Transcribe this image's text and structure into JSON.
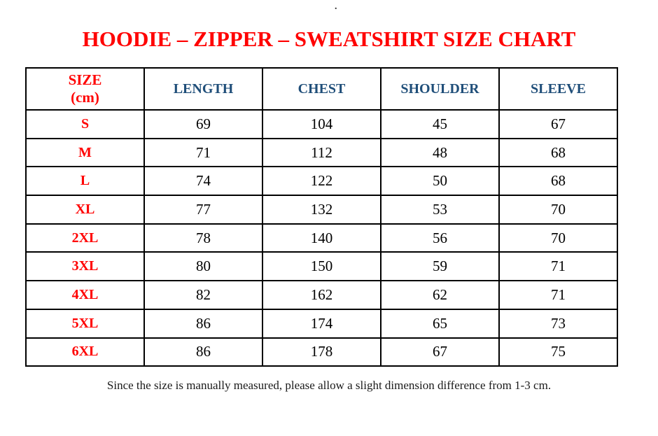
{
  "stray_mark": ".",
  "title": "HOODIE – ZIPPER – SWEATSHIRT SIZE CHART",
  "colors": {
    "title_red": "#ff0000",
    "header_blue": "#1f4e79",
    "value_black": "#000000",
    "border_black": "#000000"
  },
  "table": {
    "header": {
      "size_line1": "SIZE",
      "size_line2": "(cm)",
      "length": "LENGTH",
      "chest": "CHEST",
      "shoulder": "SHOULDER",
      "sleeve": "SLEEVE"
    },
    "rows": [
      {
        "size": "S",
        "length": "69",
        "chest": "104",
        "shoulder": "45",
        "sleeve": "67"
      },
      {
        "size": "M",
        "length": "71",
        "chest": "112",
        "shoulder": "48",
        "sleeve": "68"
      },
      {
        "size": "L",
        "length": "74",
        "chest": "122",
        "shoulder": "50",
        "sleeve": "68"
      },
      {
        "size": "XL",
        "length": "77",
        "chest": "132",
        "shoulder": "53",
        "sleeve": "70"
      },
      {
        "size": "2XL",
        "length": "78",
        "chest": "140",
        "shoulder": "56",
        "sleeve": "70"
      },
      {
        "size": "3XL",
        "length": "80",
        "chest": "150",
        "shoulder": "59",
        "sleeve": "71"
      },
      {
        "size": "4XL",
        "length": "82",
        "chest": "162",
        "shoulder": "62",
        "sleeve": "71"
      },
      {
        "size": "5XL",
        "length": "86",
        "chest": "174",
        "shoulder": "65",
        "sleeve": "73"
      },
      {
        "size": "6XL",
        "length": "86",
        "chest": "178",
        "shoulder": "67",
        "sleeve": "75"
      }
    ]
  },
  "footnote": "Since the size is manually measured, please allow a slight dimension difference from 1-3 cm."
}
